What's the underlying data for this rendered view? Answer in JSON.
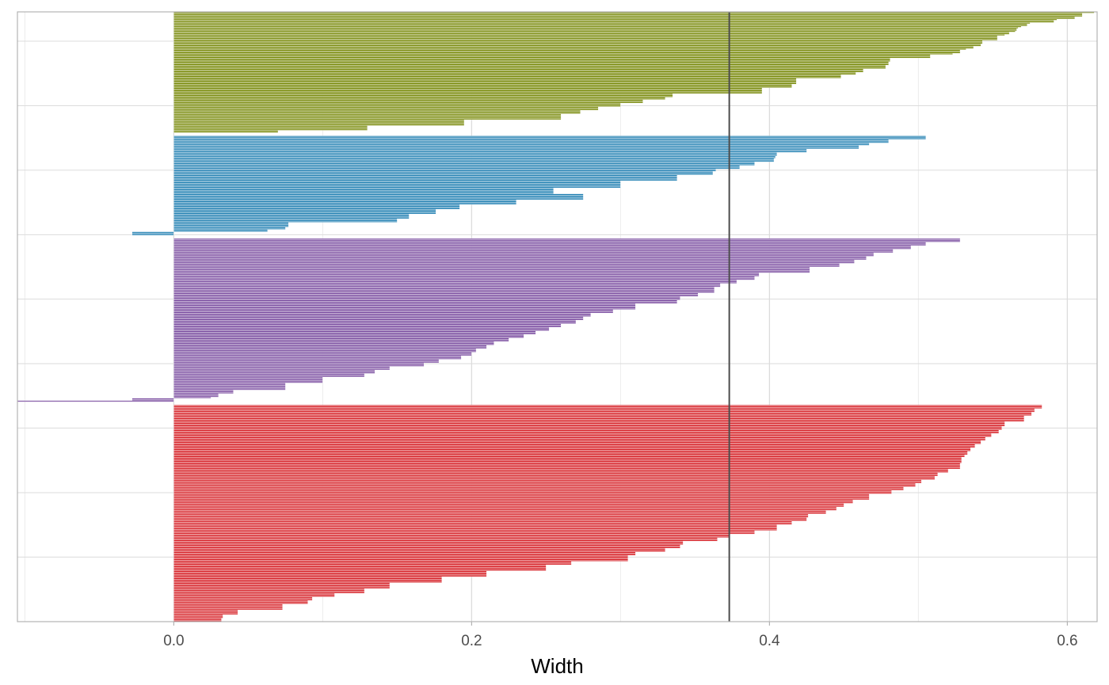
{
  "chart_data": {
    "type": "bar",
    "orientation": "horizontal",
    "xlabel": "Width",
    "ylabel": "",
    "xlim": [
      -0.105,
      0.62
    ],
    "x_ticks": [
      {
        "value": 0.0,
        "label": "0.0"
      },
      {
        "value": 0.2,
        "label": "0.2"
      },
      {
        "value": 0.4,
        "label": "0.4"
      },
      {
        "value": 0.6,
        "label": "0.6"
      }
    ],
    "x_minor_ticks": [
      -0.1,
      0.1,
      0.3,
      0.5
    ],
    "reference_line": {
      "x": 0.373,
      "color": "#4d4d4d"
    },
    "grid": true,
    "legend": "none",
    "sorting": "bars sorted by value within each cluster, descending from bottom to top",
    "series": [
      {
        "color": "#7a8b0d",
        "values": [
          0.618,
          0.61,
          0.61,
          0.61,
          0.605,
          0.605,
          0.593,
          0.591,
          0.591,
          0.575,
          0.573,
          0.573,
          0.569,
          0.567,
          0.566,
          0.566,
          0.565,
          0.561,
          0.561,
          0.558,
          0.553,
          0.553,
          0.553,
          0.553,
          0.543,
          0.543,
          0.543,
          0.542,
          0.542,
          0.537,
          0.537,
          0.532,
          0.528,
          0.528,
          0.528,
          0.523,
          0.508,
          0.508,
          0.508,
          0.481,
          0.481,
          0.481,
          0.48,
          0.48,
          0.48,
          0.478,
          0.478,
          0.478,
          0.463,
          0.463,
          0.463,
          0.458,
          0.458,
          0.448,
          0.448,
          0.448,
          0.418,
          0.418,
          0.418,
          0.418,
          0.418,
          0.415,
          0.415,
          0.415,
          0.395,
          0.395,
          0.395,
          0.395,
          0.395,
          0.335,
          0.335,
          0.335,
          0.33,
          0.33,
          0.315,
          0.315,
          0.315,
          0.3,
          0.3,
          0.3,
          0.285,
          0.285,
          0.285,
          0.273,
          0.273,
          0.273,
          0.26,
          0.26,
          0.26,
          0.26,
          0.26,
          0.195,
          0.195,
          0.195,
          0.195,
          0.195,
          0.13,
          0.13,
          0.13,
          0.13,
          0.07,
          0.07
        ]
      },
      {
        "color": "#2a85b5",
        "values": [
          0.505,
          0.505,
          0.505,
          0.48,
          0.48,
          0.48,
          0.467,
          0.467,
          0.46,
          0.46,
          0.46,
          0.425,
          0.425,
          0.425,
          0.405,
          0.405,
          0.405,
          0.404,
          0.404,
          0.403,
          0.403,
          0.403,
          0.39,
          0.39,
          0.39,
          0.38,
          0.38,
          0.38,
          0.364,
          0.364,
          0.362,
          0.362,
          0.362,
          0.338,
          0.338,
          0.338,
          0.338,
          0.338,
          0.3,
          0.3,
          0.3,
          0.3,
          0.3,
          0.3,
          0.255,
          0.255,
          0.255,
          0.255,
          0.255,
          0.275,
          0.275,
          0.275,
          0.275,
          0.275,
          0.23,
          0.23,
          0.23,
          0.23,
          0.192,
          0.192,
          0.192,
          0.192,
          0.176,
          0.176,
          0.176,
          0.176,
          0.158,
          0.158,
          0.158,
          0.158,
          0.15,
          0.15,
          0.15,
          0.077,
          0.077,
          0.077,
          0.077,
          0.075,
          0.075,
          0.063,
          0.063,
          -0.028,
          -0.028,
          -0.028
        ]
      },
      {
        "color": "#7c4fa1",
        "values": [
          0.528,
          0.528,
          0.528,
          0.505,
          0.505,
          0.505,
          0.495,
          0.495,
          0.495,
          0.483,
          0.483,
          0.483,
          0.47,
          0.47,
          0.47,
          0.465,
          0.465,
          0.465,
          0.457,
          0.457,
          0.457,
          0.447,
          0.447,
          0.447,
          0.427,
          0.427,
          0.427,
          0.427,
          0.427,
          0.393,
          0.393,
          0.393,
          0.39,
          0.39,
          0.39,
          0.378,
          0.378,
          0.378,
          0.367,
          0.367,
          0.367,
          0.363,
          0.363,
          0.363,
          0.363,
          0.363,
          0.352,
          0.352,
          0.352,
          0.34,
          0.34,
          0.34,
          0.338,
          0.338,
          0.338,
          0.31,
          0.31,
          0.31,
          0.31,
          0.31,
          0.295,
          0.295,
          0.295,
          0.28,
          0.28,
          0.28,
          0.275,
          0.275,
          0.275,
          0.27,
          0.27,
          0.27,
          0.26,
          0.26,
          0.26,
          0.252,
          0.252,
          0.252,
          0.243,
          0.243,
          0.243,
          0.235,
          0.235,
          0.235,
          0.225,
          0.225,
          0.225,
          0.215,
          0.215,
          0.215,
          0.21,
          0.21,
          0.21,
          0.203,
          0.203,
          0.203,
          0.2,
          0.2,
          0.2,
          0.193,
          0.193,
          0.193,
          0.178,
          0.178,
          0.178,
          0.168,
          0.168,
          0.168,
          0.145,
          0.145,
          0.145,
          0.135,
          0.135,
          0.135,
          0.128,
          0.128,
          0.128,
          0.1,
          0.1,
          0.1,
          0.1,
          0.1,
          0.075,
          0.075,
          0.075,
          0.075,
          0.075,
          0.075,
          0.04,
          0.04,
          0.04,
          0.03,
          0.03,
          0.03,
          0.025,
          -0.028,
          -0.028,
          -0.105
        ]
      },
      {
        "color": "#d7262c",
        "values": [
          0.583,
          0.583,
          0.583,
          0.578,
          0.578,
          0.578,
          0.576,
          0.576,
          0.576,
          0.571,
          0.571,
          0.571,
          0.571,
          0.571,
          0.558,
          0.558,
          0.558,
          0.558,
          0.556,
          0.556,
          0.556,
          0.554,
          0.554,
          0.554,
          0.549,
          0.549,
          0.549,
          0.545,
          0.545,
          0.545,
          0.542,
          0.542,
          0.542,
          0.538,
          0.538,
          0.538,
          0.535,
          0.535,
          0.535,
          0.533,
          0.533,
          0.533,
          0.531,
          0.531,
          0.529,
          0.529,
          0.529,
          0.529,
          0.529,
          0.528,
          0.528,
          0.528,
          0.528,
          0.528,
          0.52,
          0.52,
          0.52,
          0.513,
          0.513,
          0.513,
          0.511,
          0.511,
          0.511,
          0.502,
          0.502,
          0.502,
          0.498,
          0.498,
          0.498,
          0.49,
          0.49,
          0.49,
          0.482,
          0.482,
          0.482,
          0.467,
          0.467,
          0.467,
          0.467,
          0.467,
          0.456,
          0.456,
          0.456,
          0.45,
          0.45,
          0.45,
          0.445,
          0.445,
          0.445,
          0.438,
          0.438,
          0.438,
          0.426,
          0.426,
          0.426,
          0.425,
          0.425,
          0.425,
          0.415,
          0.415,
          0.415,
          0.405,
          0.405,
          0.405,
          0.405,
          0.405,
          0.39,
          0.39,
          0.39,
          0.373,
          0.373,
          0.373,
          0.365,
          0.365,
          0.365,
          0.342,
          0.342,
          0.342,
          0.34,
          0.34,
          0.34,
          0.33,
          0.33,
          0.33,
          0.31,
          0.31,
          0.31,
          0.305,
          0.305,
          0.305,
          0.305,
          0.305,
          0.267,
          0.267,
          0.267,
          0.25,
          0.25,
          0.25,
          0.25,
          0.25,
          0.21,
          0.21,
          0.21,
          0.21,
          0.21,
          0.18,
          0.18,
          0.18,
          0.18,
          0.18,
          0.145,
          0.145,
          0.145,
          0.145,
          0.145,
          0.128,
          0.128,
          0.128,
          0.128,
          0.108,
          0.108,
          0.108,
          0.093,
          0.093,
          0.093,
          0.09,
          0.09,
          0.09,
          0.073,
          0.073,
          0.073,
          0.073,
          0.073,
          0.043,
          0.043,
          0.043,
          0.043,
          0.033,
          0.033,
          0.033,
          0.032,
          0.032,
          0.032
        ]
      }
    ]
  }
}
